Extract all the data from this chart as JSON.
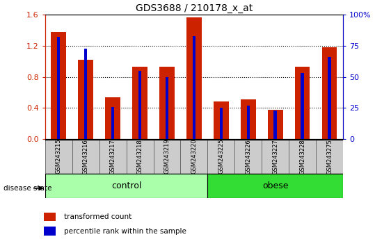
{
  "title": "GDS3688 / 210178_x_at",
  "samples": [
    "GSM243215",
    "GSM243216",
    "GSM243217",
    "GSM243218",
    "GSM243219",
    "GSM243220",
    "GSM243225",
    "GSM243226",
    "GSM243227",
    "GSM243228",
    "GSM243275"
  ],
  "transformed_count": [
    1.38,
    1.02,
    0.54,
    0.93,
    0.93,
    1.57,
    0.48,
    0.51,
    0.38,
    0.93,
    1.18
  ],
  "percentile_rank": [
    82,
    73,
    26,
    55,
    50,
    83,
    25,
    27,
    23,
    53,
    66
  ],
  "groups": [
    {
      "label": "control",
      "start": 0,
      "end": 6,
      "color": "#AAFFAA"
    },
    {
      "label": "obese",
      "start": 6,
      "end": 11,
      "color": "#33DD33"
    }
  ],
  "left_ylim": [
    0,
    1.6
  ],
  "right_ylim": [
    0,
    100
  ],
  "left_yticks": [
    0,
    0.4,
    0.8,
    1.2,
    1.6
  ],
  "right_yticks": [
    0,
    25,
    50,
    75,
    100
  ],
  "right_yticklabels": [
    "0",
    "25",
    "50",
    "75",
    "100%"
  ],
  "bar_color": "#CC2200",
  "percentile_color": "#0000CC",
  "axis_left_color": "#CC2200",
  "axis_right_color": "#0000CC",
  "grid_color": "black",
  "disease_state_label": "disease state",
  "legend_items": [
    {
      "label": "transformed count",
      "color": "#CC2200"
    },
    {
      "label": "percentile rank within the sample",
      "color": "#0000CC"
    }
  ],
  "bar_width": 0.55,
  "percentile_bar_width": 0.12,
  "bg_color": "#CCCCCC",
  "sample_box_color": "#CCCCCC"
}
